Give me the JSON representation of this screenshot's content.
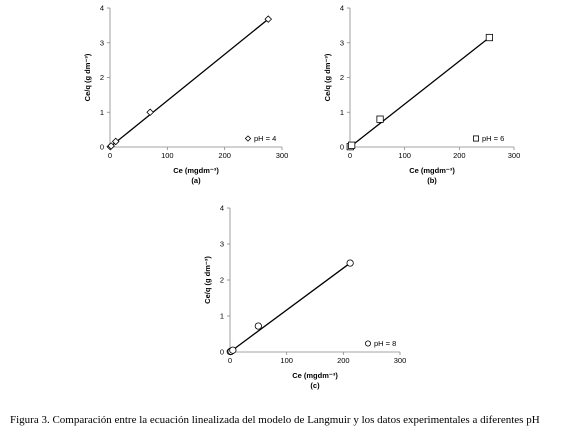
{
  "caption": "Figura 3. Comparación entre la ecuación linealizada del modelo de Langmuir y los datos experimentales a diferentes pH",
  "chart_data": [
    {
      "type": "scatter",
      "panel_label": "(a)",
      "xlabel": "Ce (mgdm⁻³)",
      "ylabel": "Ce/q (g dm⁻³)",
      "xlim": [
        0,
        300
      ],
      "ylim": [
        0,
        4
      ],
      "xticks": [
        "0",
        "100",
        "200",
        "300"
      ],
      "yticks": [
        "0",
        "1",
        "2",
        "3",
        "4"
      ],
      "legend": "pH = 4",
      "marker": "diamond",
      "points": [
        [
          0.5,
          0.01
        ],
        [
          2,
          0.03
        ],
        [
          10,
          0.16
        ],
        [
          70,
          1.0
        ],
        [
          276,
          3.68
        ]
      ],
      "fit_line": [
        [
          0,
          0.0
        ],
        [
          276,
          3.68
        ]
      ]
    },
    {
      "type": "scatter",
      "panel_label": "(b)",
      "xlabel": "Ce (mgdm⁻³)",
      "ylabel": "Ce/q (g dm⁻³)",
      "xlim": [
        0,
        300
      ],
      "ylim": [
        0,
        4
      ],
      "xticks": [
        "0",
        "100",
        "200",
        "300"
      ],
      "yticks": [
        "0",
        "1",
        "2",
        "3",
        "4"
      ],
      "legend": "pH = 6",
      "marker": "square",
      "points": [
        [
          0.5,
          0.01
        ],
        [
          3,
          0.05
        ],
        [
          55,
          0.8
        ],
        [
          255,
          3.15
        ]
      ],
      "fit_line": [
        [
          0,
          0.0
        ],
        [
          255,
          3.15
        ]
      ]
    },
    {
      "type": "scatter",
      "panel_label": "(c)",
      "xlabel": "Ce (mgdm⁻³)",
      "ylabel": "Ce/q (g dm⁻³)",
      "xlim": [
        0,
        300
      ],
      "ylim": [
        0,
        4
      ],
      "xticks": [
        "0",
        "100",
        "200",
        "300"
      ],
      "yticks": [
        "0",
        "1",
        "2",
        "3",
        "4"
      ],
      "legend": "pH = 8",
      "marker": "circle",
      "points": [
        [
          0.5,
          0.01
        ],
        [
          2,
          0.02
        ],
        [
          5,
          0.05
        ],
        [
          50,
          0.72
        ],
        [
          212,
          2.47
        ]
      ],
      "fit_line": [
        [
          0,
          0.0
        ],
        [
          212,
          2.47
        ]
      ]
    }
  ]
}
